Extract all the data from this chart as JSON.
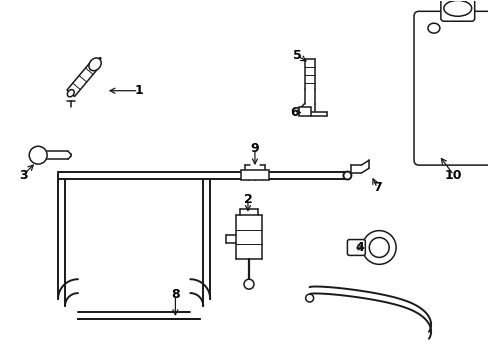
{
  "background_color": "#ffffff",
  "line_color": "#1a1a1a",
  "figsize": [
    4.89,
    3.6
  ],
  "dpi": 100,
  "tube_lw": 1.4,
  "part_lw": 1.1,
  "label_fontsize": 9
}
